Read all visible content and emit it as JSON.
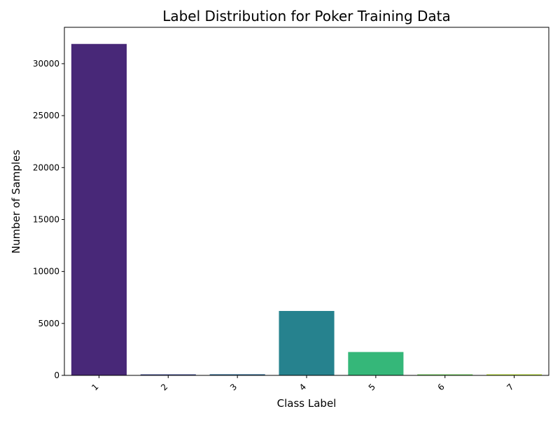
{
  "chart_data": {
    "type": "bar",
    "title": "Label Distribution for Poker Training Data",
    "xlabel": "Class Label",
    "ylabel": "Number of Samples",
    "categories": [
      "1",
      "2",
      "3",
      "4",
      "5",
      "6",
      "7"
    ],
    "values": [
      31900,
      30,
      110,
      6200,
      2250,
      40,
      20
    ],
    "colors": [
      "#482878",
      "#3e4989",
      "#31688e",
      "#26828e",
      "#35b779",
      "#6ece58",
      "#b5de2b"
    ],
    "ylim": [
      0,
      33500
    ],
    "yticks": [
      0,
      5000,
      10000,
      15000,
      20000,
      25000,
      30000
    ],
    "grid": false,
    "legend": false
  }
}
